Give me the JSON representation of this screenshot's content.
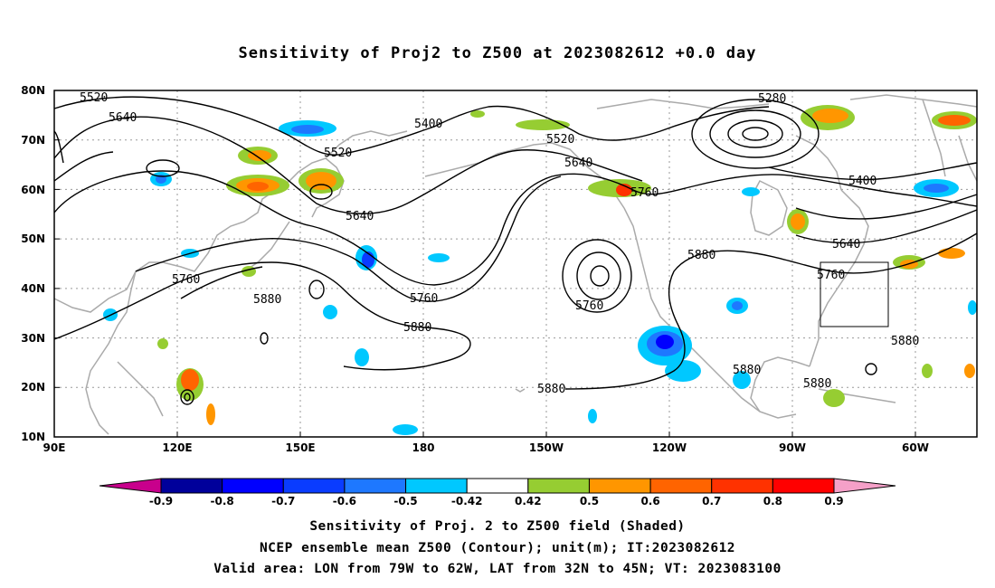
{
  "title": "Sensitivity of Proj2 to Z500 at 2023082612 +0.0 day",
  "lat_labels": [
    "80N",
    "70N",
    "60N",
    "50N",
    "40N",
    "30N",
    "20N",
    "10N"
  ],
  "lon_labels": [
    "90E",
    "120E",
    "150E",
    "180",
    "150W",
    "120W",
    "90W",
    "60W"
  ],
  "contour_labels": [
    "5520",
    "5640",
    "5400",
    "5520",
    "5280",
    "5520",
    "5640",
    "5760",
    "5400",
    "5640",
    "5760",
    "5640",
    "5880",
    "5760",
    "5880",
    "5760",
    "5880",
    "5880",
    "5880",
    "5880",
    "5880"
  ],
  "colorbar": {
    "labels": [
      "-0.9",
      "-0.8",
      "-0.7",
      "-0.6",
      "-0.5",
      "-0.42",
      "0.42",
      "0.5",
      "0.6",
      "0.7",
      "0.8",
      "0.9"
    ],
    "colors": [
      "#c8008c",
      "#00009b",
      "#0000ff",
      "#0a3cff",
      "#1e78ff",
      "#00c8ff",
      "#ffffff",
      "#96cd32",
      "#ff9600",
      "#ff6400",
      "#ff3200",
      "#ff0000",
      "#f5a0c8"
    ]
  },
  "captions": {
    "line1": "Sensitivity of Proj. 2 to Z500 field (Shaded)",
    "line2": "NCEP ensemble mean Z500 (Contour); unit(m); IT:2023082612",
    "line3": "Valid area: LON from 79W to 62W, LAT from 32N to 45N; VT: 2023083100"
  }
}
